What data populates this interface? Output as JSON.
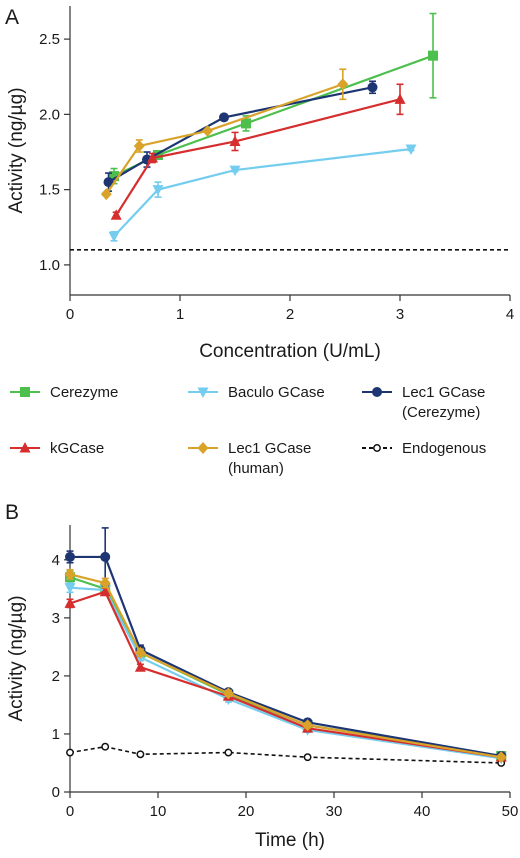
{
  "chart_data": [
    {
      "panel": "A",
      "type": "line",
      "xlabel": "Concentration (U/mL)",
      "ylabel": "Activity (ng/µg)",
      "xlim": [
        0,
        4
      ],
      "ylim": [
        0.8,
        2.72
      ],
      "xticks": [
        "0",
        "1",
        "2",
        "3",
        "4"
      ],
      "yticks": [
        "1.0",
        "1.5",
        "2.0",
        "2.5"
      ],
      "series": [
        {
          "name": "Cerezyme",
          "color": "#4dbf4d",
          "marker": "square",
          "x": [
            0.4,
            0.8,
            1.6,
            3.3
          ],
          "y": [
            1.59,
            1.73,
            1.94,
            2.39
          ],
          "err": [
            0.05,
            0.02,
            0.05,
            0.28
          ]
        },
        {
          "name": "Baculo GCase",
          "color": "#74cdee",
          "marker": "triangle-down",
          "x": [
            0.4,
            0.8,
            1.5,
            3.1
          ],
          "y": [
            1.19,
            1.5,
            1.63,
            1.77
          ],
          "err": [
            0.03,
            0.05,
            0.01,
            0.01
          ]
        },
        {
          "name": "Lec1 GCase\n(Cerezyme)",
          "color": "#1d3572",
          "marker": "circle",
          "x": [
            0.35,
            0.7,
            1.4,
            2.75
          ],
          "y": [
            1.55,
            1.7,
            1.98,
            2.18
          ],
          "err": [
            0.06,
            0.05,
            0.02,
            0.04
          ]
        },
        {
          "name": "kGCase",
          "color": "#d62e2e",
          "marker": "triangle-up",
          "x": [
            0.42,
            0.75,
            1.5,
            3.0
          ],
          "y": [
            1.33,
            1.71,
            1.82,
            2.1
          ],
          "err": [
            0.02,
            0.03,
            0.06,
            0.1
          ]
        },
        {
          "name": "Lec1 GCase\n(human)",
          "color": "#d9a32b",
          "marker": "diamond",
          "x": [
            0.33,
            0.63,
            1.25,
            2.48
          ],
          "y": [
            1.47,
            1.79,
            1.89,
            2.2
          ],
          "err": [
            0.01,
            0.04,
            0.01,
            0.1
          ]
        }
      ],
      "reference_line": {
        "name": "Endogenous",
        "y": 1.1
      }
    },
    {
      "panel": "B",
      "type": "line",
      "xlabel": "Time (h)",
      "ylabel": "Activity (ng/µg)",
      "xlim": [
        0,
        50
      ],
      "ylim": [
        0,
        4.6
      ],
      "xticks": [
        "0",
        "10",
        "20",
        "30",
        "40",
        "50"
      ],
      "yticks": [
        "0",
        "1",
        "2",
        "3",
        "4"
      ],
      "series": [
        {
          "name": "Cerezyme",
          "color": "#4dbf4d",
          "marker": "square",
          "x": [
            0,
            4,
            8,
            18,
            27,
            49
          ],
          "y": [
            3.7,
            3.5,
            2.4,
            1.68,
            1.15,
            0.62
          ],
          "err": [
            0.1,
            0.08,
            0.08,
            0.05,
            0.05,
            0.03
          ]
        },
        {
          "name": "Baculo GCase",
          "color": "#74cdee",
          "marker": "triangle-down",
          "x": [
            0,
            4,
            8,
            18,
            27,
            49
          ],
          "y": [
            3.52,
            3.48,
            2.32,
            1.6,
            1.07,
            0.58
          ],
          "err": [
            0.08,
            0.06,
            0.06,
            0.05,
            0.04,
            0.03
          ]
        },
        {
          "name": "Lec1 GCase\n(Cerezyme)",
          "color": "#1d3572",
          "marker": "circle",
          "x": [
            0,
            4,
            8,
            18,
            27,
            49
          ],
          "y": [
            4.05,
            4.05,
            2.45,
            1.72,
            1.2,
            0.62
          ],
          "err": [
            0.1,
            0.5,
            0.08,
            0.05,
            0.04,
            0.03
          ]
        },
        {
          "name": "kGCase",
          "color": "#d62e2e",
          "marker": "triangle-up",
          "x": [
            0,
            4,
            8,
            18,
            27,
            49
          ],
          "y": [
            3.25,
            3.45,
            2.15,
            1.65,
            1.1,
            0.6
          ],
          "err": [
            0.07,
            0.06,
            0.05,
            0.05,
            0.04,
            0.03
          ]
        },
        {
          "name": "Lec1 GCase\n(human)",
          "color": "#d9a32b",
          "marker": "diamond",
          "x": [
            0,
            4,
            8,
            18,
            27,
            49
          ],
          "y": [
            3.75,
            3.6,
            2.4,
            1.7,
            1.15,
            0.6
          ],
          "err": [
            0.08,
            0.08,
            0.06,
            0.05,
            0.04,
            0.03
          ]
        }
      ],
      "endogenous": {
        "name": "Endogenous",
        "x": [
          0,
          4,
          8,
          18,
          27,
          49
        ],
        "y": [
          0.68,
          0.78,
          0.65,
          0.68,
          0.6,
          0.5
        ]
      }
    }
  ],
  "legend": [
    {
      "label": "Cerezyme",
      "color": "#4dbf4d",
      "marker": "square",
      "style": "solid"
    },
    {
      "label": "Baculo GCase",
      "color": "#74cdee",
      "marker": "triangle-down",
      "style": "solid"
    },
    {
      "label": "Lec1 GCase\n(Cerezyme)",
      "color": "#1d3572",
      "marker": "circle",
      "style": "solid"
    },
    {
      "label": "kGCase",
      "color": "#d62e2e",
      "marker": "triangle-up",
      "style": "solid"
    },
    {
      "label": "Lec1 GCase\n(human)",
      "color": "#d9a32b",
      "marker": "diamond",
      "style": "solid"
    },
    {
      "label": "Endogenous",
      "color": "#111111",
      "marker": "open-circle",
      "style": "dashed"
    }
  ]
}
